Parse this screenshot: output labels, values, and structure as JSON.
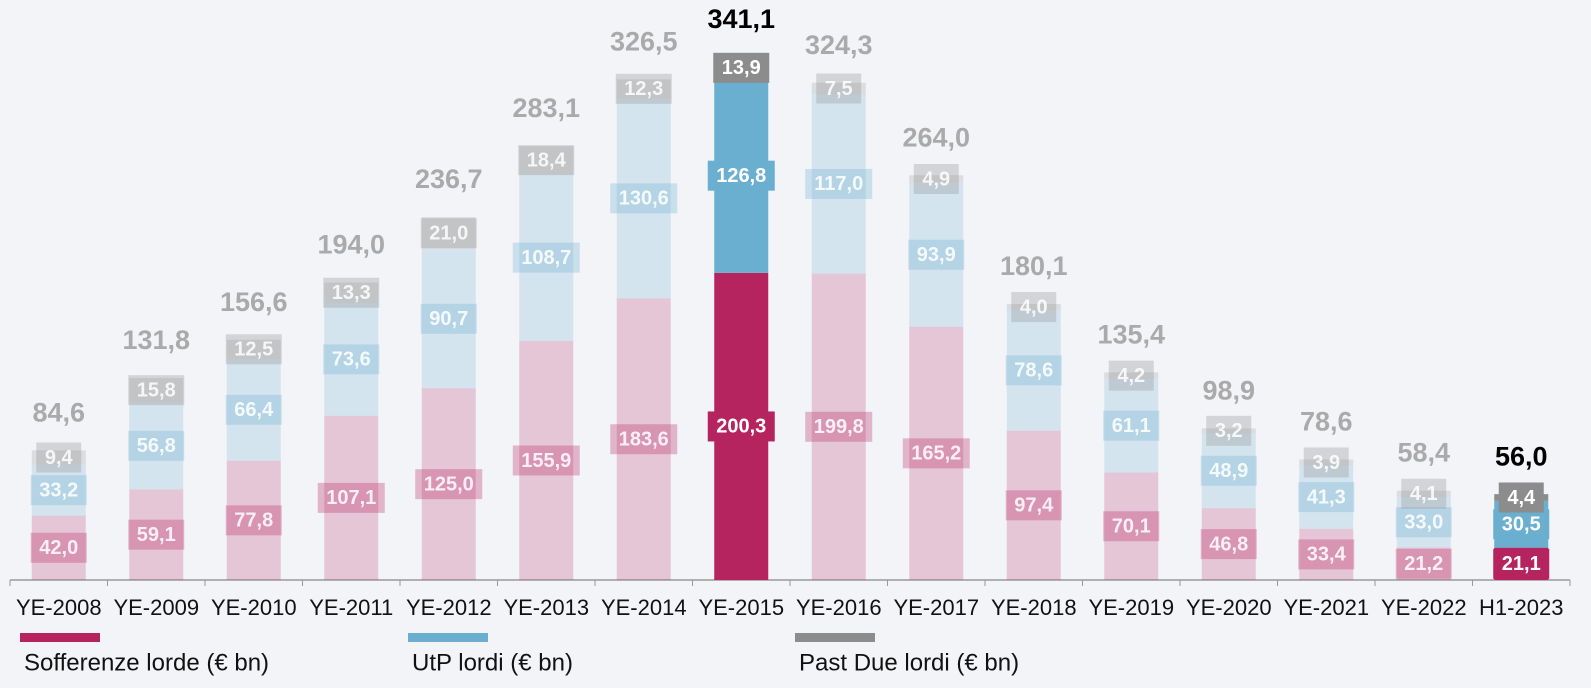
{
  "chart_data": {
    "type": "stacked_bar",
    "categories": [
      "YE-2008",
      "YE-2009",
      "YE-2010",
      "YE-2011",
      "YE-2012",
      "YE-2013",
      "YE-2014",
      "YE-2015",
      "YE-2016",
      "YE-2017",
      "YE-2018",
      "YE-2019",
      "YE-2020",
      "YE-2021",
      "YE-2022",
      "H1-2023"
    ],
    "series": [
      {
        "name": "Sofferenze lorde (€ bn)",
        "color": "#b5245f",
        "values": [
          42.0,
          59.1,
          77.8,
          107.1,
          125.0,
          155.9,
          183.6,
          200.3,
          199.8,
          165.2,
          97.4,
          70.1,
          46.8,
          33.4,
          21.2,
          21.1
        ],
        "value_labels": [
          "42,0",
          "59,1",
          "77,8",
          "107,1",
          "125,0",
          "155,9",
          "183,6",
          "200,3",
          "199,8",
          "165,2",
          "97,4",
          "70,1",
          "46,8",
          "33,4",
          "21,2",
          "21,1"
        ]
      },
      {
        "name": "UtP lordi (€ bn)",
        "color": "#6aaed0",
        "values": [
          33.2,
          56.8,
          66.4,
          73.6,
          90.7,
          108.7,
          130.6,
          126.8,
          117.0,
          93.9,
          78.6,
          61.1,
          48.9,
          41.3,
          33.0,
          30.5
        ],
        "value_labels": [
          "33,2",
          "56,8",
          "66,4",
          "73,6",
          "90,7",
          "108,7",
          "130,6",
          "126,8",
          "117,0",
          "93,9",
          "78,6",
          "61,1",
          "48,9",
          "41,3",
          "33,0",
          "30,5"
        ]
      },
      {
        "name": "Past Due lordi (€ bn)",
        "color": "#8c8c8c",
        "values": [
          9.4,
          15.8,
          12.5,
          13.3,
          21.0,
          18.4,
          12.3,
          13.9,
          7.5,
          4.9,
          4.0,
          4.2,
          3.2,
          3.9,
          4.1,
          4.4
        ],
        "value_labels": [
          "9,4",
          "15,8",
          "12,5",
          "13,3",
          "21,0",
          "18,4",
          "12,3",
          "13,9",
          "7,5",
          "4,9",
          "4,0",
          "4,2",
          "3,2",
          "3,9",
          "4,1",
          "4,4"
        ]
      }
    ],
    "totals": [
      84.6,
      131.8,
      156.6,
      194.0,
      236.7,
      283.1,
      326.5,
      341.1,
      324.3,
      264.0,
      180.1,
      135.4,
      98.9,
      78.6,
      58.4,
      56.0
    ],
    "total_labels": [
      "84,6",
      "131,8",
      "156,6",
      "194,0",
      "236,7",
      "283,1",
      "326,5",
      "341,1",
      "324,3",
      "264,0",
      "180,1",
      "135,4",
      "98,9",
      "78,6",
      "58,4",
      "56,0"
    ],
    "highlight": [
      7,
      15
    ]
  }
}
